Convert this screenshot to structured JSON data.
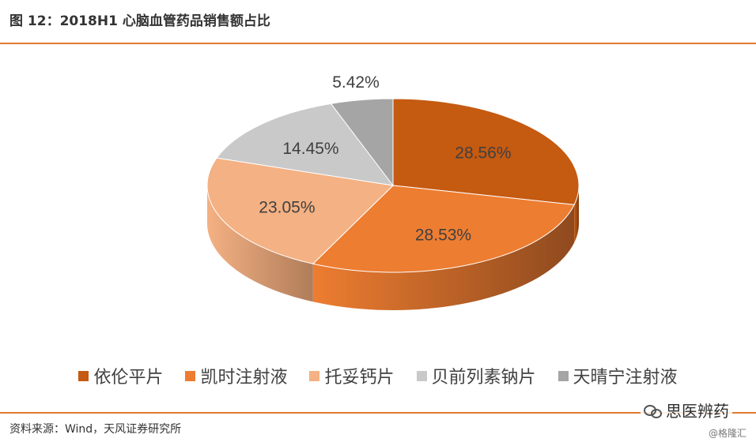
{
  "header": {
    "title": "图 12：2018H1 心脑血管药品销售额占比"
  },
  "footer": {
    "source": "资料来源：Wind，天风证券研究所",
    "brand": "思医辨药",
    "watermark": "@格隆汇"
  },
  "chart_data": {
    "type": "pie",
    "title": "",
    "style": "3d",
    "legend_position": "bottom",
    "categories": [
      "依伦平片",
      "凯时注射液",
      "托妥钙片",
      "贝前列素钠片",
      "天晴宁注射液"
    ],
    "values": [
      28.56,
      28.53,
      23.05,
      14.45,
      5.42
    ],
    "labels": [
      "28.56%",
      "28.53%",
      "23.05%",
      "14.45%",
      "5.42%"
    ],
    "colors": [
      "#c55a11",
      "#ed7d31",
      "#f4b183",
      "#c9c9c9",
      "#a5a5a5"
    ],
    "side_colors": [
      "#7f3a0c",
      "#8f4a1e",
      "#b07d5a",
      "#8f8f8f",
      "#6e6e6e"
    ]
  }
}
